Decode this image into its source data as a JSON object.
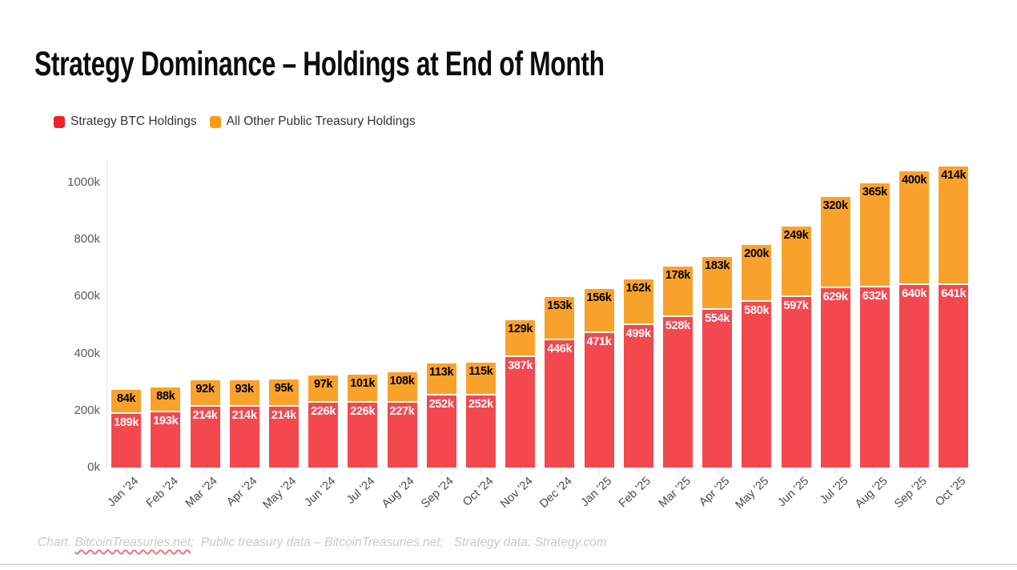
{
  "title": "Strategy Dominance – Holdings at End of Month",
  "legend": {
    "items": [
      {
        "label": "Strategy BTC Holdings",
        "color": "#ee2127"
      },
      {
        "label": "All Other Public Treasury Holdings",
        "color": "#f89c18"
      }
    ]
  },
  "footer": {
    "segments": [
      {
        "text": "Chart. "
      },
      {
        "text": "BitcoinTreasuries.net",
        "wavy": true
      },
      {
        "text": ";  Public treasury data – BitcoinTreasuries.net;   Strategy data: Strategy.com"
      }
    ]
  },
  "chart_data": {
    "type": "bar",
    "stacked": true,
    "title": "Strategy Dominance – Holdings at End of Month",
    "xlabel": "",
    "ylabel": "",
    "unit": "k BTC",
    "value_suffix": "k",
    "ylim": [
      0,
      1100
    ],
    "grid": false,
    "legend_position": "top-left",
    "y_ticks": [
      {
        "value": 0,
        "label": "0k"
      },
      {
        "value": 200,
        "label": "200k"
      },
      {
        "value": 400,
        "label": "400k"
      },
      {
        "value": 600,
        "label": "600k"
      },
      {
        "value": 800,
        "label": "800k"
      },
      {
        "value": 1000,
        "label": "1000k"
      }
    ],
    "categories": [
      "Jan '24",
      "Feb '24",
      "Mar '24",
      "Apr '24",
      "May '24",
      "Jun '24",
      "Jul '24",
      "Aug '24",
      "Sep '24",
      "Oct '24",
      "Nov '24",
      "Dec '24",
      "Jan '25",
      "Feb '25",
      "Mar '25",
      "Apr '25",
      "May '25",
      "Jun '25",
      "Jul '25",
      "Aug '25",
      "Sep '25",
      "Oct '25"
    ],
    "series": [
      {
        "name": "Strategy BTC Holdings",
        "color": "#f4484f",
        "label_color": "#ffffff",
        "values": [
          189,
          193,
          214,
          214,
          214,
          226,
          226,
          227,
          252,
          252,
          387,
          446,
          471,
          499,
          528,
          554,
          580,
          597,
          629,
          632,
          640,
          641
        ]
      },
      {
        "name": "All Other Public Treasury Holdings",
        "color": "#f9a22b",
        "label_color": "#000000",
        "values": [
          84,
          88,
          92,
          93,
          95,
          97,
          101,
          108,
          113,
          115,
          129,
          153,
          156,
          162,
          178,
          183,
          200,
          249,
          320,
          365,
          400,
          414
        ]
      }
    ]
  }
}
